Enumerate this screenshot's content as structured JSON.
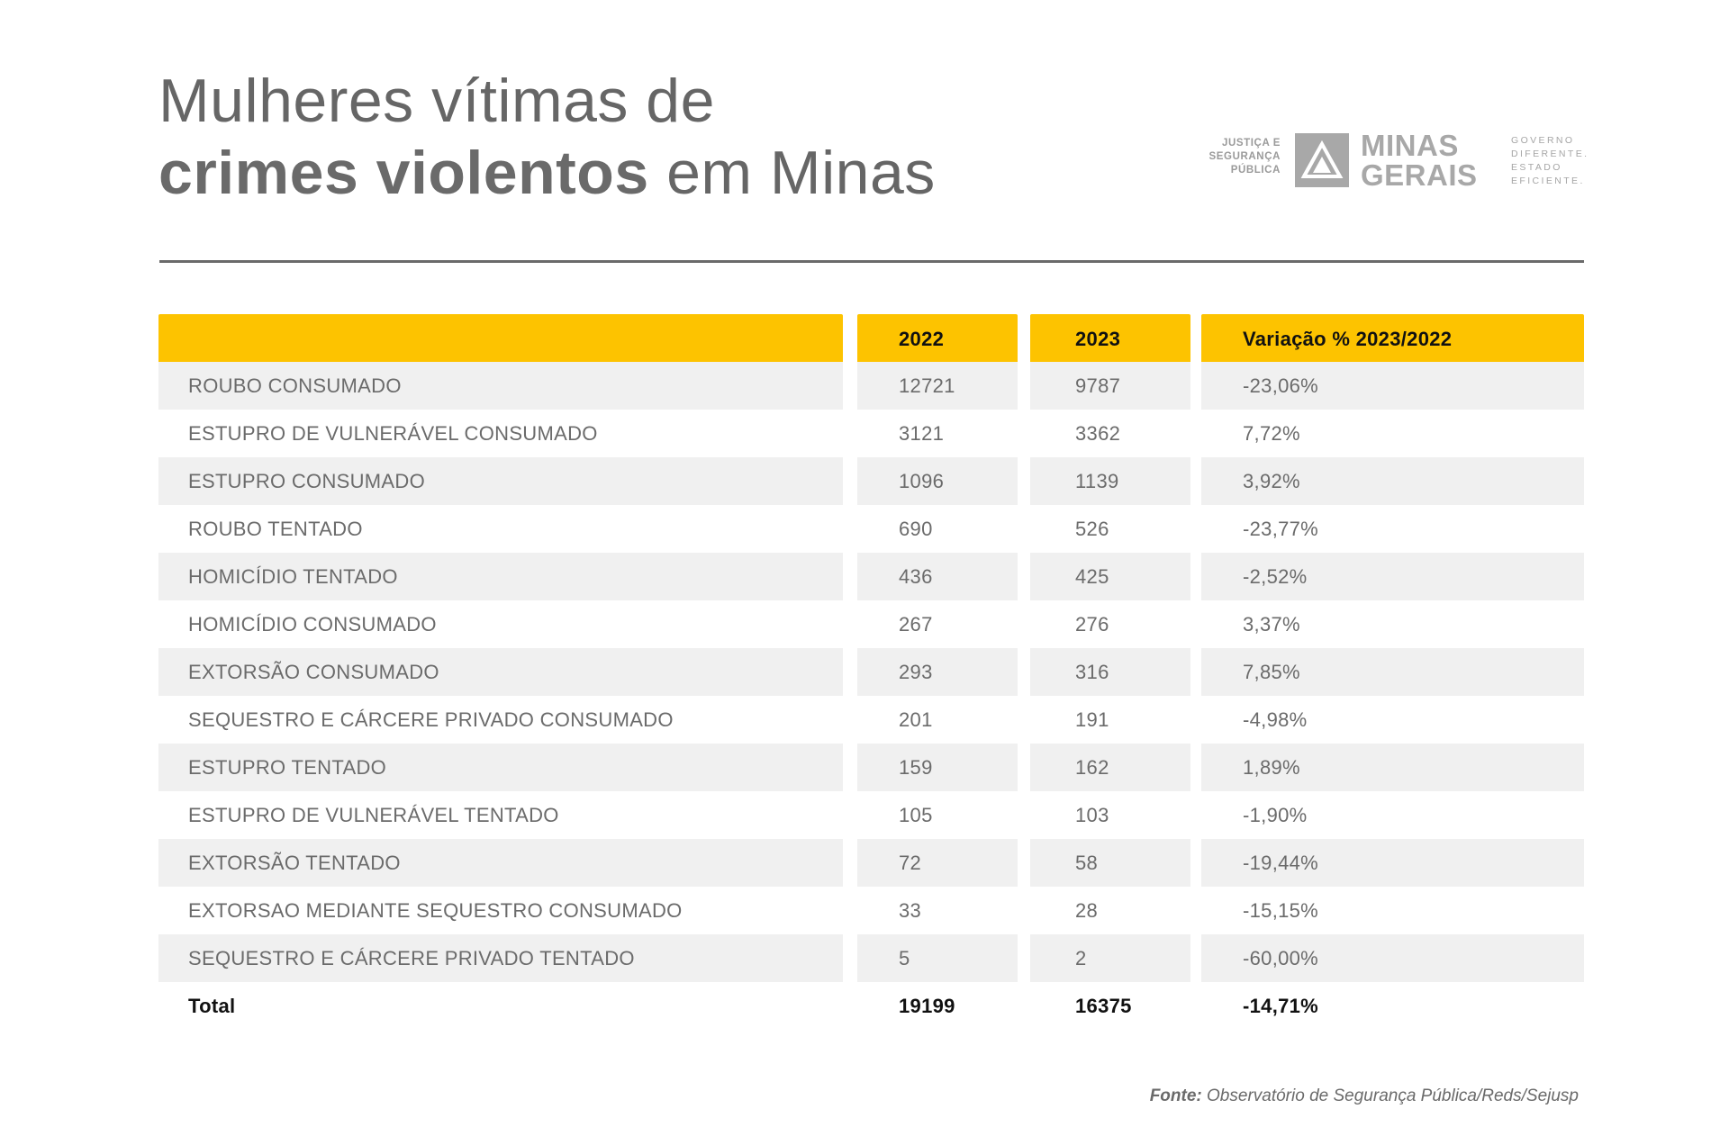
{
  "title": {
    "line1": "Mulheres vítimas de",
    "line2_bold": "crimes violentos",
    "line2_rest": " em Minas"
  },
  "logo": {
    "left_text": [
      "JUSTIÇA E",
      "SEGURANÇA",
      "PÚBLICA"
    ],
    "name": [
      "MINAS",
      "GERAIS"
    ],
    "right_text": [
      "GOVERNO",
      "DIFERENTE.",
      "ESTADO",
      "EFICIENTE."
    ],
    "icon": "minas-gerais-triangle-logo-icon"
  },
  "table": {
    "headers": [
      "",
      "2022",
      "2023",
      "Variação % 2023/2022"
    ],
    "rows": [
      [
        "ROUBO CONSUMADO",
        "12721",
        "9787",
        "-23,06%"
      ],
      [
        "ESTUPRO DE VULNERÁVEL CONSUMADO",
        "3121",
        "3362",
        "7,72%"
      ],
      [
        "ESTUPRO CONSUMADO",
        "1096",
        "1139",
        "3,92%"
      ],
      [
        "ROUBO TENTADO",
        "690",
        "526",
        "-23,77%"
      ],
      [
        "HOMICÍDIO TENTADO",
        "436",
        "425",
        "-2,52%"
      ],
      [
        "HOMICÍDIO CONSUMADO",
        "267",
        "276",
        "3,37%"
      ],
      [
        "EXTORSÃO CONSUMADO",
        "293",
        "316",
        "7,85%"
      ],
      [
        "SEQUESTRO E CÁRCERE PRIVADO CONSUMADO",
        "201",
        "191",
        "-4,98%"
      ],
      [
        "ESTUPRO TENTADO",
        "159",
        "162",
        "1,89%"
      ],
      [
        "ESTUPRO DE VULNERÁVEL TENTADO",
        "105",
        "103",
        "-1,90%"
      ],
      [
        "EXTORSÃO TENTADO",
        "72",
        "58",
        "-19,44%"
      ],
      [
        "EXTORSAO MEDIANTE SEQUESTRO CONSUMADO",
        "33",
        "28",
        "-15,15%"
      ],
      [
        "SEQUESTRO E CÁRCERE PRIVADO TENTADO",
        "5",
        "2",
        "-60,00%"
      ]
    ],
    "total": [
      "Total",
      "19199",
      "16375",
      "-14,71%"
    ]
  },
  "source": {
    "label": "Fonte:",
    "text": " Observatório de Segurança Pública/Reds/Sejusp"
  },
  "colors": {
    "header": "#fdc300",
    "row_shade": "#f0f0f0",
    "text": "#6b6b6b"
  }
}
